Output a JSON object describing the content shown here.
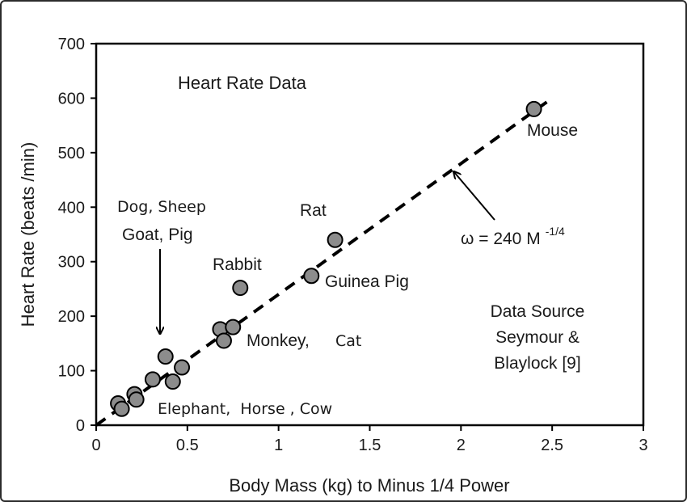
{
  "chart_data": {
    "type": "scatter",
    "title": "Heart Rate Data",
    "xlabel": "Body Mass (kg) to Minus 1/4 Power",
    "ylabel": "Heart Rate (beats /min)",
    "xlim": [
      0,
      3
    ],
    "ylim": [
      0,
      700
    ],
    "x_ticks": [
      "0",
      "0.5",
      "1",
      "1.5",
      "2",
      "2.5",
      "3"
    ],
    "y_ticks": [
      "0",
      "100",
      "200",
      "300",
      "400",
      "500",
      "600",
      "700"
    ],
    "grid": false,
    "marker_color": "#8c8c8c",
    "points": [
      {
        "x": 0.12,
        "y": 40
      },
      {
        "x": 0.14,
        "y": 30
      },
      {
        "x": 0.21,
        "y": 57
      },
      {
        "x": 0.22,
        "y": 47
      },
      {
        "x": 0.31,
        "y": 84
      },
      {
        "x": 0.38,
        "y": 126
      },
      {
        "x": 0.42,
        "y": 80
      },
      {
        "x": 0.47,
        "y": 106
      },
      {
        "x": 0.68,
        "y": 176
      },
      {
        "x": 0.7,
        "y": 155
      },
      {
        "x": 0.75,
        "y": 180
      },
      {
        "x": 0.79,
        "y": 252
      },
      {
        "x": 1.18,
        "y": 274
      },
      {
        "x": 1.31,
        "y": 340
      },
      {
        "x": 2.4,
        "y": 580
      }
    ],
    "fit_line": {
      "label": "ω = 240 M",
      "label_exponent": "-1/4",
      "x": [
        0,
        2.5
      ],
      "y": [
        0,
        600
      ]
    },
    "labels": {
      "mouse": "Mouse",
      "rat": "Rat",
      "guinea_pig": "Guinea Pig",
      "rabbit": "Rabbit",
      "dog_sheep": "Dog, Sheep",
      "goat_pig": "Goat, Pig",
      "monkey": "Monkey,",
      "cat": "Cat",
      "elephant_horse_cow": "Elephant,  Horse , Cow",
      "source_line1": "Data Source",
      "source_line2": "Seymour &",
      "source_line3": "Blaylock [9]"
    }
  }
}
